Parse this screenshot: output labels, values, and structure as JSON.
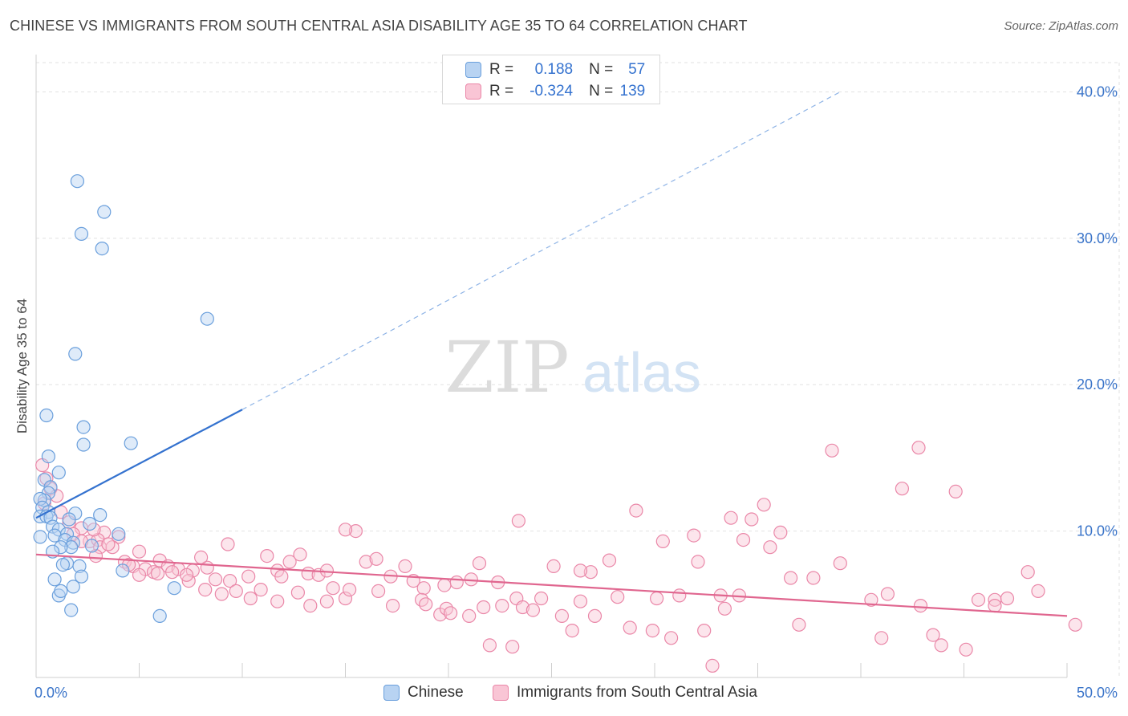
{
  "title": "CHINESE VS IMMIGRANTS FROM SOUTH CENTRAL ASIA DISABILITY AGE 35 TO 64 CORRELATION CHART",
  "source": "Source: ZipAtlas.com",
  "watermark": {
    "zip": "ZIP",
    "atlas": "atlas"
  },
  "stats": {
    "r_label": "R =",
    "n_label": "N =",
    "rows": [
      {
        "r": "0.188",
        "n": "57",
        "color": "#3472cf"
      },
      {
        "r": "-0.324",
        "n": "139",
        "color": "#e0668f"
      }
    ]
  },
  "legend": [
    {
      "label": "Chinese"
    },
    {
      "label": "Immigrants from South Central Asia"
    }
  ],
  "chart_data": {
    "type": "scatter",
    "title": "CHINESE VS IMMIGRANTS FROM SOUTH CENTRAL ASIA DISABILITY AGE 35 TO 64 CORRELATION CHART",
    "xlabel": "",
    "ylabel": "Disability Age 35 to 64",
    "xlim": [
      0,
      50
    ],
    "ylim": [
      0,
      42
    ],
    "x_tick_labels": [
      {
        "value": 0,
        "label": "0.0%"
      },
      {
        "value": 50,
        "label": "50.0%"
      }
    ],
    "y_tick_labels": [
      {
        "value": 10,
        "label": "10.0%"
      },
      {
        "value": 20,
        "label": "20.0%"
      },
      {
        "value": 30,
        "label": "30.0%"
      },
      {
        "value": 40,
        "label": "40.0%"
      }
    ],
    "grid": true,
    "legend_position": "bottom",
    "series": [
      {
        "name": "Chinese",
        "color": "#6a9fdc",
        "fill": "#b8d3f2",
        "trend": {
          "x1": 0,
          "y1": 10.9,
          "x2": 10,
          "y2": 18.3,
          "dashed_to_x": 39,
          "dashed_to_y": 40.0
        },
        "points": [
          [
            2.0,
            33.9
          ],
          [
            3.3,
            31.8
          ],
          [
            2.2,
            30.3
          ],
          [
            3.2,
            29.3
          ],
          [
            8.3,
            24.5
          ],
          [
            1.9,
            22.1
          ],
          [
            0.5,
            17.9
          ],
          [
            2.3,
            17.1
          ],
          [
            2.3,
            15.9
          ],
          [
            4.6,
            16.0
          ],
          [
            0.6,
            15.1
          ],
          [
            1.1,
            14.0
          ],
          [
            0.4,
            13.5
          ],
          [
            0.7,
            13.0
          ],
          [
            0.6,
            12.6
          ],
          [
            0.4,
            12.1
          ],
          [
            0.2,
            12.2
          ],
          [
            0.3,
            11.6
          ],
          [
            0.6,
            11.3
          ],
          [
            1.9,
            11.2
          ],
          [
            3.1,
            11.1
          ],
          [
            0.2,
            11.0
          ],
          [
            0.5,
            11.0
          ],
          [
            0.7,
            10.9
          ],
          [
            1.6,
            10.8
          ],
          [
            2.6,
            10.5
          ],
          [
            0.8,
            10.3
          ],
          [
            1.1,
            10.1
          ],
          [
            1.5,
            9.8
          ],
          [
            0.9,
            9.7
          ],
          [
            0.2,
            9.6
          ],
          [
            4.0,
            9.8
          ],
          [
            1.4,
            9.4
          ],
          [
            1.8,
            9.2
          ],
          [
            2.7,
            9.0
          ],
          [
            1.7,
            8.9
          ],
          [
            1.2,
            8.9
          ],
          [
            0.8,
            8.6
          ],
          [
            1.5,
            7.8
          ],
          [
            1.3,
            7.7
          ],
          [
            2.1,
            7.6
          ],
          [
            4.2,
            7.3
          ],
          [
            0.9,
            6.7
          ],
          [
            2.2,
            6.9
          ],
          [
            1.8,
            6.2
          ],
          [
            6.7,
            6.1
          ],
          [
            1.1,
            5.6
          ],
          [
            1.2,
            5.9
          ],
          [
            1.7,
            4.6
          ],
          [
            6.0,
            4.2
          ]
        ]
      },
      {
        "name": "Immigrants from South Central Asia",
        "color": "#ea87a8",
        "fill": "#f9c5d5",
        "trend": {
          "x1": 0,
          "y1": 8.4,
          "x2": 50,
          "y2": 4.2
        },
        "points": [
          [
            0.3,
            14.5
          ],
          [
            0.5,
            13.6
          ],
          [
            0.7,
            12.9
          ],
          [
            1.0,
            12.4
          ],
          [
            0.4,
            11.9
          ],
          [
            1.2,
            11.3
          ],
          [
            1.6,
            10.6
          ],
          [
            2.2,
            10.2
          ],
          [
            1.8,
            9.8
          ],
          [
            3.3,
            9.9
          ],
          [
            2.6,
            9.3
          ],
          [
            3.0,
            9.4
          ],
          [
            4.0,
            9.6
          ],
          [
            3.1,
            8.9
          ],
          [
            3.7,
            8.9
          ],
          [
            2.9,
            8.3
          ],
          [
            5.0,
            8.6
          ],
          [
            4.3,
            7.9
          ],
          [
            4.7,
            7.6
          ],
          [
            5.3,
            7.4
          ],
          [
            6.0,
            8.0
          ],
          [
            6.4,
            7.6
          ],
          [
            5.7,
            7.2
          ],
          [
            6.9,
            7.4
          ],
          [
            7.6,
            7.3
          ],
          [
            8.3,
            7.5
          ],
          [
            7.4,
            6.6
          ],
          [
            8.7,
            6.7
          ],
          [
            8.2,
            6.0
          ],
          [
            9.4,
            6.6
          ],
          [
            9.0,
            5.7
          ],
          [
            10.3,
            6.9
          ],
          [
            9.7,
            5.9
          ],
          [
            10.9,
            6.0
          ],
          [
            11.2,
            8.3
          ],
          [
            11.7,
            7.3
          ],
          [
            12.3,
            7.9
          ],
          [
            11.7,
            5.2
          ],
          [
            12.7,
            5.8
          ],
          [
            13.2,
            7.1
          ],
          [
            13.7,
            7.0
          ],
          [
            13.3,
            4.9
          ],
          [
            14.4,
            6.1
          ],
          [
            14.1,
            5.2
          ],
          [
            15.0,
            5.4
          ],
          [
            15.5,
            10.0
          ],
          [
            15.2,
            6.0
          ],
          [
            16.0,
            7.9
          ],
          [
            17.2,
            6.9
          ],
          [
            16.6,
            5.9
          ],
          [
            17.9,
            7.6
          ],
          [
            18.3,
            6.6
          ],
          [
            18.8,
            6.1
          ],
          [
            17.3,
            4.9
          ],
          [
            18.7,
            5.3
          ],
          [
            19.6,
            4.3
          ],
          [
            19.9,
            4.7
          ],
          [
            20.4,
            6.5
          ],
          [
            20.1,
            4.4
          ],
          [
            21.1,
            6.7
          ],
          [
            21.7,
            4.8
          ],
          [
            21.5,
            7.8
          ],
          [
            22.4,
            6.5
          ],
          [
            22.6,
            4.9
          ],
          [
            22.0,
            2.2
          ],
          [
            23.3,
            5.4
          ],
          [
            23.4,
            10.7
          ],
          [
            23.6,
            4.8
          ],
          [
            24.1,
            4.6
          ],
          [
            24.5,
            5.4
          ],
          [
            25.1,
            7.6
          ],
          [
            25.5,
            4.2
          ],
          [
            26.0,
            3.2
          ],
          [
            26.4,
            5.2
          ],
          [
            26.9,
            7.2
          ],
          [
            27.1,
            4.2
          ],
          [
            28.2,
            5.5
          ],
          [
            28.8,
            3.4
          ],
          [
            29.1,
            11.4
          ],
          [
            29.9,
            3.2
          ],
          [
            30.1,
            5.4
          ],
          [
            30.8,
            2.7
          ],
          [
            31.2,
            5.6
          ],
          [
            31.9,
            9.7
          ],
          [
            32.1,
            7.9
          ],
          [
            32.4,
            3.2
          ],
          [
            32.8,
            0.8
          ],
          [
            33.2,
            5.6
          ],
          [
            33.4,
            4.7
          ],
          [
            34.1,
            5.6
          ],
          [
            34.3,
            9.4
          ],
          [
            34.7,
            10.8
          ],
          [
            35.3,
            11.8
          ],
          [
            35.6,
            8.9
          ],
          [
            36.6,
            6.8
          ],
          [
            37.0,
            3.6
          ],
          [
            37.7,
            6.8
          ],
          [
            38.6,
            15.5
          ],
          [
            39.0,
            7.8
          ],
          [
            40.5,
            5.3
          ],
          [
            41.0,
            2.7
          ],
          [
            41.3,
            5.7
          ],
          [
            42.0,
            12.9
          ],
          [
            42.8,
            15.7
          ],
          [
            42.9,
            4.9
          ],
          [
            43.5,
            2.9
          ],
          [
            43.9,
            2.2
          ],
          [
            44.6,
            12.7
          ],
          [
            45.1,
            1.9
          ],
          [
            45.7,
            5.3
          ],
          [
            46.5,
            5.3
          ],
          [
            46.5,
            4.9
          ],
          [
            47.1,
            5.4
          ],
          [
            48.6,
            5.9
          ],
          [
            48.1,
            7.2
          ],
          [
            50.4,
            3.6
          ],
          [
            36.1,
            9.9
          ],
          [
            33.7,
            10.9
          ],
          [
            30.4,
            9.3
          ],
          [
            27.8,
            8.0
          ],
          [
            26.4,
            7.3
          ],
          [
            23.1,
            2.1
          ],
          [
            21.0,
            4.2
          ],
          [
            19.8,
            6.3
          ],
          [
            18.9,
            5.0
          ],
          [
            16.5,
            8.1
          ],
          [
            15.0,
            10.1
          ],
          [
            14.1,
            7.3
          ],
          [
            12.8,
            8.4
          ],
          [
            11.9,
            6.9
          ],
          [
            10.4,
            5.4
          ],
          [
            9.3,
            9.1
          ],
          [
            8.0,
            8.2
          ],
          [
            7.3,
            7.0
          ],
          [
            6.6,
            7.2
          ],
          [
            5.9,
            7.1
          ],
          [
            5.0,
            7.0
          ],
          [
            4.5,
            7.7
          ],
          [
            3.5,
            9.1
          ],
          [
            2.8,
            10.1
          ],
          [
            2.2,
            9.3
          ]
        ]
      }
    ]
  }
}
